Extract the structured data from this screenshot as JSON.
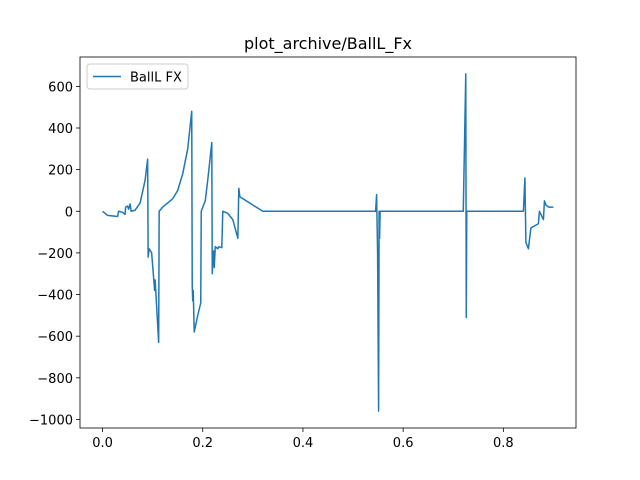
{
  "chart_data": {
    "type": "line",
    "title": "plot_archive/BallL_Fx",
    "x": [
      0.0,
      0.01,
      0.03,
      0.032,
      0.04,
      0.045,
      0.046,
      0.05,
      0.052,
      0.055,
      0.057,
      0.065,
      0.075,
      0.085,
      0.09,
      0.091,
      0.093,
      0.098,
      0.104,
      0.105,
      0.112,
      0.113,
      0.12,
      0.13,
      0.14,
      0.15,
      0.16,
      0.17,
      0.178,
      0.179,
      0.18,
      0.181,
      0.183,
      0.19,
      0.196,
      0.197,
      0.205,
      0.21,
      0.218,
      0.219,
      0.22,
      0.222,
      0.223,
      0.225,
      0.23,
      0.232,
      0.238,
      0.24,
      0.25,
      0.26,
      0.27,
      0.272,
      0.273,
      0.274,
      0.3,
      0.32,
      0.545,
      0.547,
      0.549,
      0.551,
      0.552,
      0.553,
      0.554,
      0.72,
      0.725,
      0.726,
      0.727,
      0.84,
      0.843,
      0.845,
      0.85,
      0.855,
      0.87,
      0.872,
      0.88,
      0.882,
      0.885,
      0.89,
      0.9
    ],
    "series": [
      {
        "name": "BallL FX",
        "color": "#1f77b4",
        "values": [
          0,
          -20,
          -25,
          0,
          -5,
          -15,
          20,
          25,
          10,
          35,
          0,
          5,
          40,
          150,
          250,
          -220,
          -180,
          -200,
          -380,
          -330,
          -630,
          0,
          20,
          40,
          60,
          100,
          180,
          300,
          480,
          -360,
          -430,
          -380,
          -580,
          -500,
          -440,
          0,
          50,
          150,
          330,
          -300,
          -250,
          -190,
          -270,
          -170,
          -180,
          -170,
          -175,
          0,
          -10,
          -40,
          -130,
          110,
          90,
          70,
          30,
          0,
          0,
          80,
          -200,
          -960,
          0,
          -130,
          0,
          0,
          660,
          -510,
          0,
          0,
          160,
          -150,
          -180,
          -80,
          -60,
          0,
          -40,
          50,
          30,
          20,
          20
        ]
      }
    ],
    "xlim": [
      -0.045,
      0.945
    ],
    "xticks": [
      {
        "value": 0,
        "label": "0.0"
      },
      0.2,
      0.4,
      0.6,
      0.8
    ],
    "ylim": [
      -1041,
      741
    ],
    "yticks": [
      {
        "value": -1000,
        "label": "−1000"
      },
      {
        "value": -800,
        "label": "−800"
      },
      {
        "value": -600,
        "label": "−600"
      },
      {
        "value": -400,
        "label": "−400"
      },
      {
        "value": -200,
        "label": "−200"
      },
      0,
      200,
      400,
      600
    ],
    "legend": "upper left"
  }
}
